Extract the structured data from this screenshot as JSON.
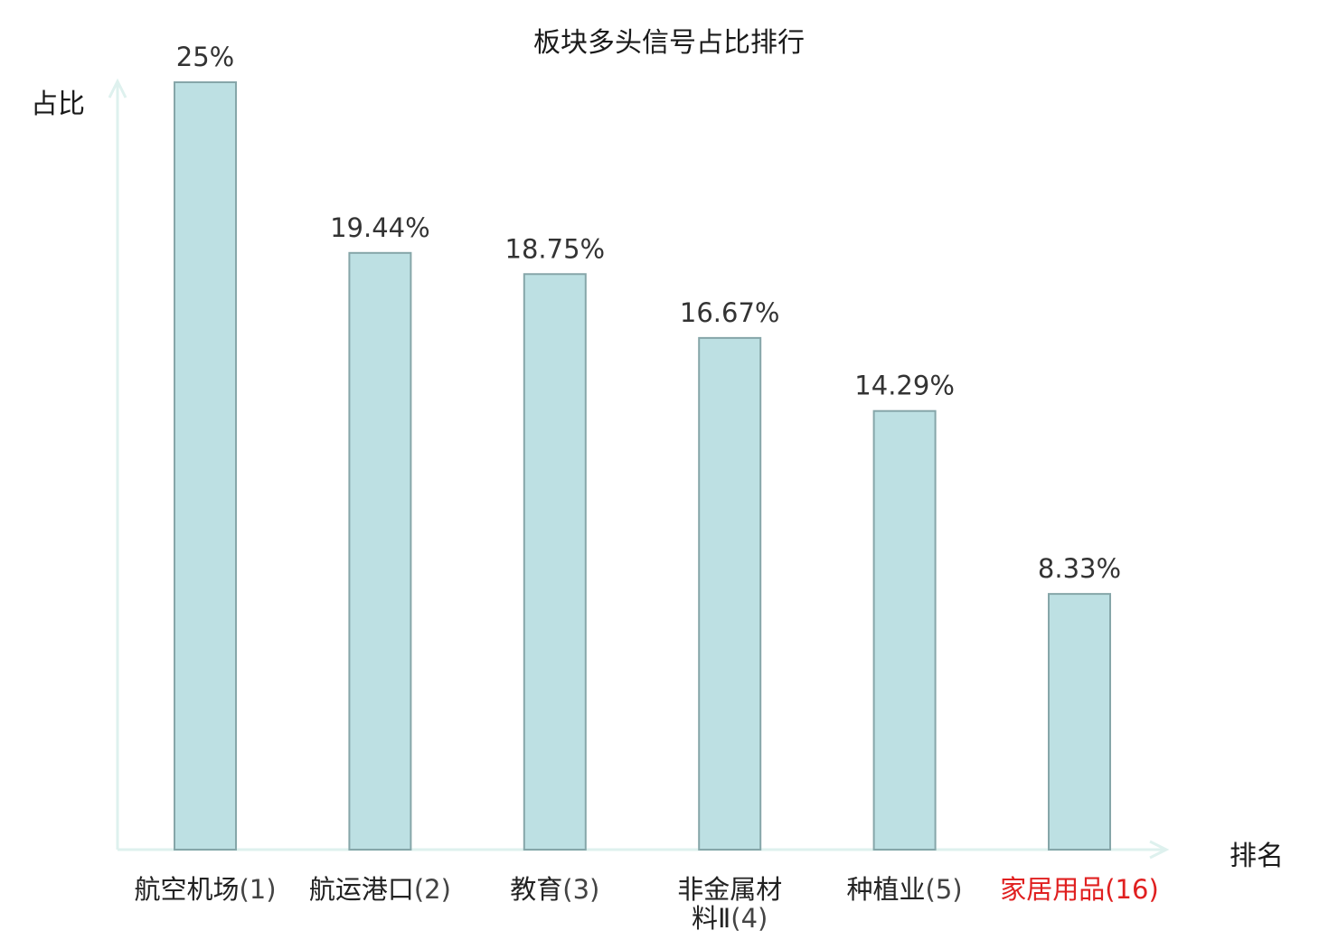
{
  "chart_data": {
    "type": "bar",
    "title": "板块多头信号占比排行",
    "xlabel": "排名",
    "ylabel": "占比",
    "categories": [
      "航空机场(1)",
      "航运港口(2)",
      "教育(3)",
      "非金属材料Ⅱ(4)",
      "种植业(5)",
      "家居用品(16)"
    ],
    "category_names": [
      "航空机场",
      "航运港口",
      "教育",
      "非金属材料Ⅱ",
      "种植业",
      "家居用品"
    ],
    "category_ranks": [
      "(1)",
      "(2)",
      "(3)",
      "(4)",
      "(5)",
      "(16)"
    ],
    "values": [
      25,
      19.44,
      18.75,
      16.67,
      14.29,
      8.33
    ],
    "value_labels": [
      "25%",
      "19.44%",
      "18.75%",
      "16.67%",
      "14.29%",
      "8.33%"
    ],
    "highlight_index": 5,
    "ylim": [
      0,
      25
    ],
    "grid": false,
    "colors": {
      "bar_fill": "#bde0e3",
      "bar_stroke": "#86a6a9",
      "axis": "#def1ee",
      "label_text": "#222222",
      "value_text": "#333333",
      "highlight_text": "#e02020"
    }
  }
}
